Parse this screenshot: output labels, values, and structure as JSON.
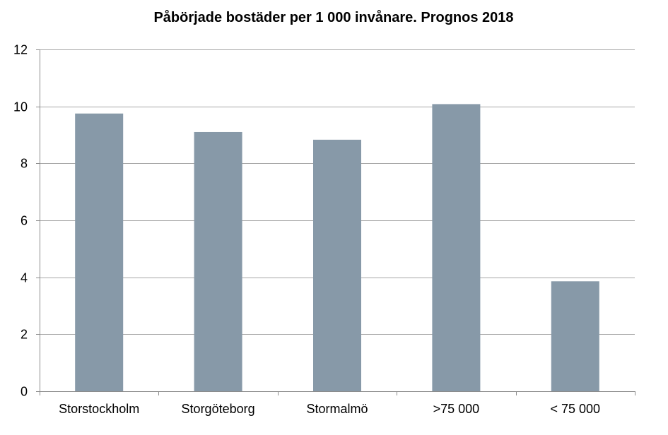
{
  "chart_data": {
    "type": "bar",
    "title": "Påbörjade bostäder per 1 000 invånare. Prognos 2018",
    "xlabel": "",
    "ylabel": "",
    "categories": [
      "Storstockholm",
      "Storgöteborg",
      "Stormalmö",
      ">75 000",
      "< 75 000"
    ],
    "values": [
      9.75,
      9.1,
      8.83,
      10.08,
      3.86
    ],
    "ylim": [
      0,
      12
    ],
    "yticks": [
      0,
      2,
      4,
      6,
      8,
      10,
      12
    ],
    "ytick_labels": [
      "0",
      "2",
      "4",
      "6",
      "8",
      "10",
      "12"
    ],
    "grid": true,
    "legend": "none"
  },
  "colors": {
    "bar": "#8799a8",
    "grid": "#a6a6a6",
    "axis": "#8c8c8c",
    "text": "#000000"
  }
}
